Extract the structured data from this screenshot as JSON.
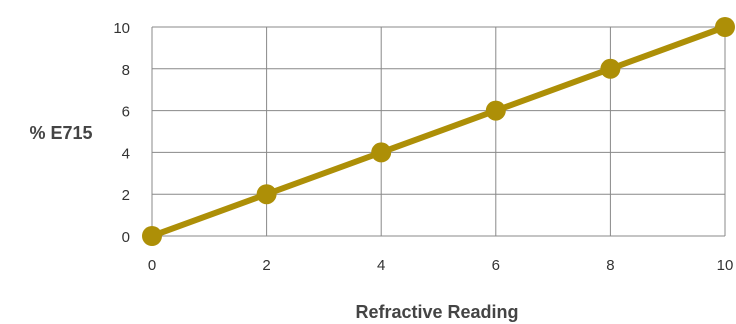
{
  "chart_data": {
    "type": "line",
    "x": [
      0,
      2,
      4,
      6,
      8,
      10
    ],
    "series": [
      {
        "values": [
          0,
          2,
          4,
          6,
          8,
          10
        ]
      }
    ],
    "xlabel": "Refractive Reading",
    "ylabel": "% E715",
    "xlim": [
      0,
      10
    ],
    "ylim": [
      0,
      10
    ],
    "xticks": [
      "0",
      "2",
      "4",
      "6",
      "8",
      "10"
    ],
    "yticks": [
      "0",
      "2",
      "4",
      "6",
      "8",
      "10"
    ],
    "grid": true,
    "legend": "none",
    "line_color": "#ad8f07",
    "grid_color": "#888888"
  }
}
